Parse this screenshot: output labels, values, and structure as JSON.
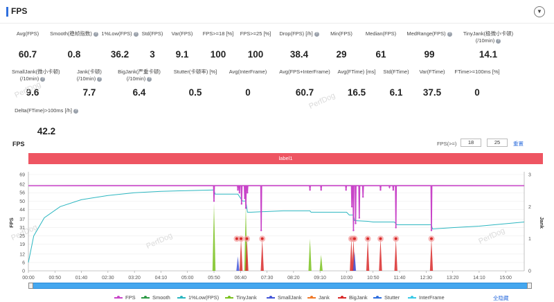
{
  "header": {
    "title": "FPS"
  },
  "stats": [
    {
      "label": "Avg(FPS)",
      "value": "60.7"
    },
    {
      "label": "Smooth(稳帧指数)",
      "value": "0.8",
      "help": true
    },
    {
      "label": "1%Low(FPS)",
      "value": "36.2",
      "help": true
    },
    {
      "label": "Std(FPS)",
      "value": "3"
    },
    {
      "label": "Var(FPS)",
      "value": "9.1"
    },
    {
      "label": "FPS>=18 [%]",
      "value": "100"
    },
    {
      "label": "FPS>=25 [%]",
      "value": "100"
    },
    {
      "label": "Drop(FPS) [/h]",
      "value": "38.4",
      "help": true
    },
    {
      "label": "Min(FPS)",
      "value": "29"
    },
    {
      "label": "Median(FPS)",
      "value": "61"
    },
    {
      "label": "MedRange(FPS)",
      "value": "99",
      "help": true
    },
    {
      "label": "TinyJank(极微小卡顿)",
      "label2": "(/10min)",
      "value": "14.1",
      "help": true
    },
    {
      "label": "SmallJank(微小卡顿)",
      "label2": "(/10min)",
      "value": "9.6",
      "help": true
    },
    {
      "label": "Jank(卡顿)",
      "label2": "(/10min)",
      "value": "7.7",
      "help": true
    },
    {
      "label": "BigJank(严重卡顿)",
      "label2": "(/10min)",
      "value": "6.4",
      "help": true
    },
    {
      "label": "Stutter(卡顿率) [%]",
      "value": "0.5"
    },
    {
      "label": "Avg(InterFrame)",
      "value": "0"
    },
    {
      "label": "Avg(FPS+InterFrame)",
      "value": "60.7"
    },
    {
      "label": "Avg(FTime) [ms]",
      "value": "16.5"
    },
    {
      "label": "Std(FTime)",
      "value": "6.1"
    },
    {
      "label": "Var(FTime)",
      "value": "37.5"
    },
    {
      "label": "FTime>=100ms [%]",
      "value": "0"
    },
    {
      "label": "Delta(FTime)>100ms [/h]",
      "value": "42.2",
      "help": true
    }
  ],
  "watermark": "PerfDog",
  "chart_header": {
    "title": "FPS",
    "threshold_label": "FPS(>=)",
    "threshold_1": "18",
    "threshold_2": "25",
    "reset_label": "重置",
    "label_bar": "label1"
  },
  "chart_data": {
    "type": "line",
    "x_ticks": [
      "00:00",
      "00:50",
      "01:40",
      "02:30",
      "03:20",
      "04:10",
      "05:00",
      "05:50",
      "06:40",
      "07:30",
      "08:20",
      "09:10",
      "10:00",
      "10:50",
      "11:40",
      "12:30",
      "13:20",
      "14:10",
      "15:00"
    ],
    "x_range_seconds": [
      0,
      935
    ],
    "y_left_ticks": [
      0,
      6,
      12,
      19,
      25,
      31,
      37,
      44,
      50,
      56,
      62,
      69
    ],
    "y_right_ticks": [
      0,
      1,
      2,
      3
    ],
    "y_left_label": "FPS",
    "y_right_label": "Jank",
    "fps_baseline": 61,
    "fps_dips": [
      {
        "t": 350,
        "v": 50
      },
      {
        "t": 395,
        "v": 58
      },
      {
        "t": 398,
        "v": 56
      },
      {
        "t": 402,
        "v": 48
      },
      {
        "t": 408,
        "v": 52
      },
      {
        "t": 410,
        "v": 45
      },
      {
        "t": 413,
        "v": 56
      },
      {
        "t": 439,
        "v": 29
      },
      {
        "t": 531,
        "v": 58
      },
      {
        "t": 552,
        "v": 58
      },
      {
        "t": 599,
        "v": 58
      },
      {
        "t": 610,
        "v": 46
      },
      {
        "t": 613,
        "v": 29
      },
      {
        "t": 617,
        "v": 34
      },
      {
        "t": 624,
        "v": 38
      },
      {
        "t": 631,
        "v": 53
      },
      {
        "t": 664,
        "v": 58
      },
      {
        "t": 681,
        "v": 60
      },
      {
        "t": 688,
        "v": 58
      },
      {
        "t": 693,
        "v": 31
      },
      {
        "t": 760,
        "v": 29
      }
    ],
    "low1_series": {
      "name": "1%Low(FPS)",
      "x": [
        0,
        10,
        30,
        60,
        100,
        150,
        200,
        250,
        300,
        350,
        352,
        395,
        402,
        404,
        410,
        413,
        420,
        480,
        531,
        533,
        600,
        605,
        613,
        615,
        640,
        650,
        690,
        695,
        760,
        762,
        800,
        850,
        935
      ],
      "y": [
        6,
        25,
        38,
        46,
        51,
        54,
        56,
        57,
        57.5,
        58,
        55,
        55,
        51,
        50,
        50,
        42,
        42,
        43,
        43,
        42,
        42,
        40,
        40,
        36,
        35.5,
        35,
        35,
        33,
        33,
        30,
        31,
        32,
        35
      ]
    },
    "big_jank_markers_t": [
      393,
      401,
      412,
      441,
      609,
      613,
      615,
      640,
      664,
      693,
      760
    ],
    "jank_spikes": [
      {
        "t": 350,
        "h": 2.1,
        "series": "TinyJank"
      },
      {
        "t": 395,
        "h": 0.45,
        "series": "SmallJank"
      },
      {
        "t": 401,
        "h": 1.0,
        "series": "BigJank"
      },
      {
        "t": 410,
        "h": 2.0,
        "series": "TinyJank"
      },
      {
        "t": 412,
        "h": 1.0,
        "series": "BigJank"
      },
      {
        "t": 441,
        "h": 1.0,
        "series": "BigJank"
      },
      {
        "t": 531,
        "h": 1.0,
        "series": "TinyJank"
      },
      {
        "t": 552,
        "h": 0.5,
        "series": "TinyJank"
      },
      {
        "t": 609,
        "h": 1.0,
        "series": "BigJank"
      },
      {
        "t": 613,
        "h": 1.0,
        "series": "BigJank"
      },
      {
        "t": 615,
        "h": 0.6,
        "series": "SmallJank"
      },
      {
        "t": 640,
        "h": 1.0,
        "series": "BigJank"
      },
      {
        "t": 664,
        "h": 1.0,
        "series": "BigJank"
      },
      {
        "t": 693,
        "h": 1.0,
        "series": "BigJank"
      },
      {
        "t": 760,
        "h": 1.0,
        "series": "BigJank"
      }
    ],
    "series_colors": {
      "FPS": "#c844c8",
      "Smooth": "#2e9a46",
      "1%Low(FPS)": "#2bb6c0",
      "TinyJank": "#7ac21f",
      "SmallJank": "#4255d8",
      "Jank": "#f07a2a",
      "BigJank": "#d92b2b",
      "Stutter": "#2f6fde",
      "InterFrame": "#3bc9e6"
    },
    "legend": [
      "FPS",
      "Smooth",
      "1%Low(FPS)",
      "TinyJank",
      "SmallJank",
      "Jank",
      "BigJank",
      "Stutter",
      "InterFrame"
    ],
    "hide_all_label": "全隐藏"
  }
}
